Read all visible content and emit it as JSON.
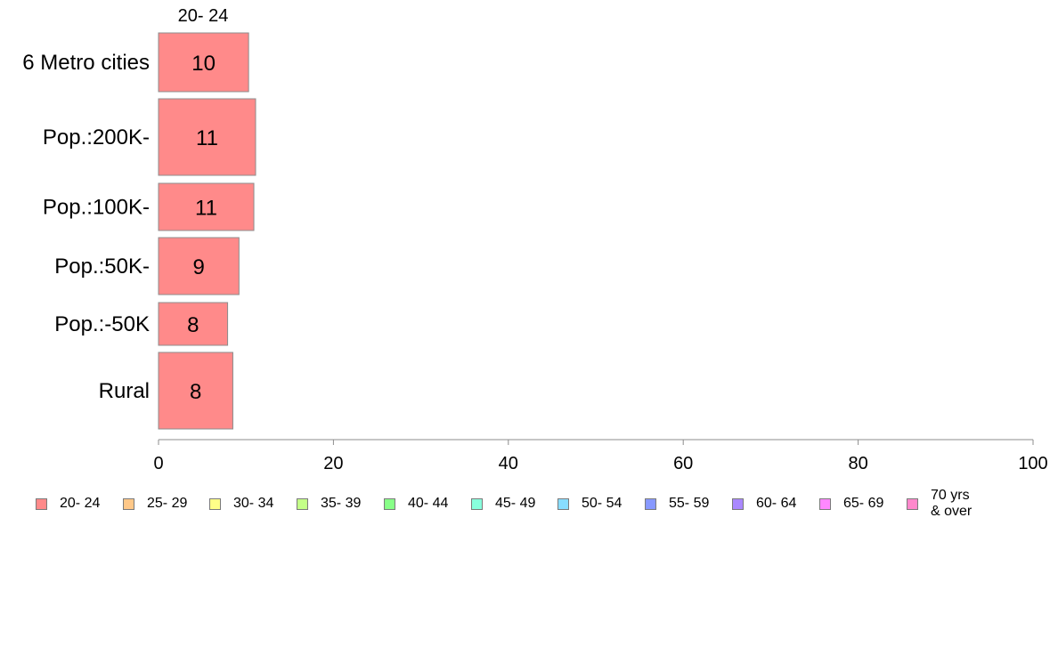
{
  "chart_data": {
    "type": "bar",
    "orientation": "horizontal",
    "categories": [
      "6 Metro cities",
      "Pop.:200K-",
      "Pop.:100K-",
      "Pop.:50K-",
      "Pop.:-50K",
      "Rural"
    ],
    "series_heading": "20- 24",
    "series": [
      {
        "name": "20- 24",
        "values": [
          10.3,
          11.1,
          10.9,
          9.2,
          7.9,
          8.5
        ],
        "labels": [
          "10",
          "11",
          "11",
          "9",
          "8",
          "8"
        ],
        "color": "#ff8a8a"
      }
    ],
    "xlim": [
      0,
      100
    ],
    "xticks": [
      "0",
      "20",
      "40",
      "60",
      "80",
      "100"
    ],
    "grid": false,
    "legend_position": "bottom",
    "legend": [
      {
        "label": "20- 24",
        "color": "#ff8a8a"
      },
      {
        "label": "25- 29",
        "color": "#ffc888"
      },
      {
        "label": "30- 34",
        "color": "#ffff88"
      },
      {
        "label": "35- 39",
        "color": "#c4ff88"
      },
      {
        "label": "40- 44",
        "color": "#88ff88"
      },
      {
        "label": "45- 49",
        "color": "#88ffdd"
      },
      {
        "label": "50- 54",
        "color": "#88ddff"
      },
      {
        "label": "55- 59",
        "color": "#8899ff"
      },
      {
        "label": "60- 64",
        "color": "#aa88ff"
      },
      {
        "label": "65- 69",
        "color": "#ff88ff"
      },
      {
        "label": "70 yrs\n& over",
        "color": "#ff88cc"
      }
    ]
  }
}
